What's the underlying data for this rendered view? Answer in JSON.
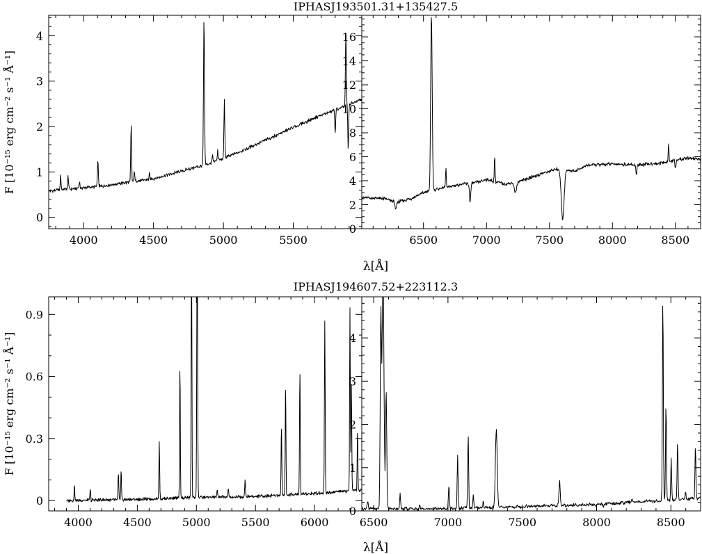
{
  "figure": {
    "top_title": "IPHASJ193501.31+135427.5",
    "bottom_title": "IPHASJ194607.52+223112.3",
    "xlabel": "λ[Å]",
    "ylabel": "F [10⁻¹⁵ erg cm⁻² s⁻¹ Å⁻¹]"
  },
  "chart_data": [
    {
      "type": "line",
      "title": "IPHASJ193501.31+135427.5",
      "xlabel": "λ[Å]",
      "ylabel": "F [10⁻¹⁵ erg cm⁻² s⁻¹ Å⁻¹]",
      "xlim": [
        3750,
        5990
      ],
      "ylim": [
        -0.25,
        4.45
      ],
      "xticks": [
        4000,
        4500,
        5000,
        5500
      ],
      "yticks": [
        0,
        1,
        2,
        3,
        4
      ],
      "continuum": [
        [
          3750,
          0.58
        ],
        [
          4100,
          0.68
        ],
        [
          4300,
          0.76
        ],
        [
          4500,
          0.85
        ],
        [
          4700,
          1.02
        ],
        [
          4900,
          1.18
        ],
        [
          5100,
          1.42
        ],
        [
          5300,
          1.7
        ],
        [
          5500,
          1.98
        ],
        [
          5700,
          2.25
        ],
        [
          5850,
          2.42
        ],
        [
          5990,
          2.6
        ]
      ],
      "lines": [
        {
          "x": 3835,
          "peak": 0.93,
          "width": 3,
          "label": ""
        },
        {
          "x": 3889,
          "peak": 0.92,
          "width": 3,
          "label": ""
        },
        {
          "x": 3970,
          "peak": 0.78,
          "width": 3,
          "label": ""
        },
        {
          "x": 4102,
          "peak": 1.28,
          "width": 3,
          "label": ""
        },
        {
          "x": 4340,
          "peak": 2.05,
          "width": 3,
          "label": ""
        },
        {
          "x": 4363,
          "peak": 1.05,
          "width": 2.5,
          "label": ""
        },
        {
          "x": 4471,
          "peak": 0.98,
          "width": 2.5,
          "label": ""
        },
        {
          "x": 4861,
          "peak": 4.4,
          "width": 3.5,
          "label": ""
        },
        {
          "x": 4922,
          "peak": 1.4,
          "width": 2.5,
          "label": ""
        },
        {
          "x": 4959,
          "peak": 1.5,
          "width": 2.5,
          "label": ""
        },
        {
          "x": 5007,
          "peak": 2.6,
          "width": 3,
          "label": ""
        },
        {
          "x": 5876,
          "peak": 4.1,
          "width": 3,
          "label": ""
        }
      ],
      "absorptions": [
        {
          "x": 5800,
          "depth": 0.5,
          "width": 3
        },
        {
          "x": 5893,
          "depth": 1.0,
          "width": 3
        }
      ]
    },
    {
      "type": "line",
      "title": "IPHASJ193501.31+135427.5",
      "xlabel": "λ[Å]",
      "ylim": [
        0,
        17.8
      ],
      "xlim": [
        6010,
        8700
      ],
      "xticks": [
        6500,
        7000,
        7500,
        8000,
        8500
      ],
      "yticks": [
        0,
        2,
        4,
        6,
        8,
        10,
        12,
        14,
        16
      ],
      "continuum": [
        [
          6010,
          2.6
        ],
        [
          6200,
          2.5
        ],
        [
          6280,
          2.2
        ],
        [
          6400,
          2.5
        ],
        [
          6500,
          3.0
        ],
        [
          6600,
          3.3
        ],
        [
          6800,
          3.7
        ],
        [
          6900,
          3.8
        ],
        [
          7000,
          4.1
        ],
        [
          7150,
          3.7
        ],
        [
          7300,
          4.1
        ],
        [
          7500,
          4.8
        ],
        [
          7570,
          5.0
        ],
        [
          7700,
          4.8
        ],
        [
          7800,
          5.3
        ],
        [
          8000,
          5.4
        ],
        [
          8200,
          5.3
        ],
        [
          8400,
          5.5
        ],
        [
          8600,
          5.9
        ],
        [
          8700,
          5.8
        ]
      ],
      "lines": [
        {
          "x": 6563,
          "peak": 17.8,
          "width": 6,
          "label": ""
        },
        {
          "x": 6678,
          "peak": 5.0,
          "width": 3,
          "label": ""
        },
        {
          "x": 7065,
          "peak": 6.0,
          "width": 3,
          "label": ""
        },
        {
          "x": 8446,
          "peak": 7.0,
          "width": 3,
          "label": ""
        }
      ],
      "absorptions": [
        {
          "x": 6280,
          "depth": 0.6,
          "width": 6
        },
        {
          "x": 6870,
          "depth": 1.5,
          "width": 5
        },
        {
          "x": 7230,
          "depth": 0.9,
          "width": 10
        },
        {
          "x": 7605,
          "depth": 4.2,
          "width": 11
        },
        {
          "x": 8190,
          "depth": 0.8,
          "width": 4
        },
        {
          "x": 8500,
          "depth": 0.7,
          "width": 4
        }
      ]
    },
    {
      "type": "line",
      "title": "IPHASJ194607.52+223112.3",
      "xlabel": "λ[Å]",
      "ylabel": "F [10⁻¹⁵ erg cm⁻² s⁻¹ Å⁻¹]",
      "xlim": [
        3750,
        6400
      ],
      "ylim": [
        -0.05,
        0.985
      ],
      "xticks": [
        4000,
        4500,
        5000,
        5500,
        6000
      ],
      "yticks": [
        0,
        0.3,
        0.6,
        0.9
      ],
      "ytick_labels": [
        "0",
        "0.3",
        "0.6",
        "0.9"
      ],
      "x_start": 3900,
      "continuum": [
        [
          3900,
          0.0
        ],
        [
          4500,
          0.005
        ],
        [
          5000,
          0.015
        ],
        [
          5500,
          0.02
        ],
        [
          6000,
          0.035
        ],
        [
          6400,
          0.05
        ]
      ],
      "lines": [
        {
          "x": 3968,
          "peak": 0.075,
          "width": 3,
          "label": ""
        },
        {
          "x": 4102,
          "peak": 0.055,
          "width": 3,
          "label": ""
        },
        {
          "x": 4340,
          "peak": 0.13,
          "width": 3,
          "label": ""
        },
        {
          "x": 4363,
          "peak": 0.15,
          "width": 3,
          "label": ""
        },
        {
          "x": 4686,
          "peak": 0.28,
          "width": 3,
          "label": ""
        },
        {
          "x": 4861,
          "peak": 0.66,
          "width": 3,
          "label": ""
        },
        {
          "x": 4959,
          "peak": 1.3,
          "width": 3,
          "label": ""
        },
        {
          "x": 5007,
          "peak": 1.3,
          "width": 3.5,
          "label": ""
        },
        {
          "x": 5176,
          "peak": 0.05,
          "width": 3,
          "label": ""
        },
        {
          "x": 5270,
          "peak": 0.06,
          "width": 3,
          "label": ""
        },
        {
          "x": 5412,
          "peak": 0.1,
          "width": 3,
          "label": ""
        },
        {
          "x": 5720,
          "peak": 0.37,
          "width": 3,
          "label": ""
        },
        {
          "x": 5755,
          "peak": 0.57,
          "width": 3,
          "label": ""
        },
        {
          "x": 5876,
          "peak": 0.64,
          "width": 3,
          "label": ""
        },
        {
          "x": 6087,
          "peak": 0.87,
          "width": 3,
          "label": ""
        },
        {
          "x": 6300,
          "peak": 0.93,
          "width": 3,
          "label": ""
        },
        {
          "x": 6312,
          "peak": 0.55,
          "width": 3,
          "label": ""
        },
        {
          "x": 6364,
          "peak": 0.34,
          "width": 3,
          "label": ""
        }
      ],
      "absorptions": []
    },
    {
      "type": "line",
      "title": "IPHASJ194607.52+223112.3",
      "xlabel": "λ[Å]",
      "xlim": [
        6420,
        8700
      ],
      "ylim": [
        0,
        4.95
      ],
      "xticks": [
        6500,
        7000,
        7500,
        8000,
        8500
      ],
      "yticks": [
        0,
        1,
        2,
        3,
        4
      ],
      "continuum": [
        [
          6420,
          0.05
        ],
        [
          7000,
          0.05
        ],
        [
          7500,
          0.1
        ],
        [
          8000,
          0.15
        ],
        [
          8500,
          0.25
        ],
        [
          8700,
          0.3
        ]
      ],
      "lines": [
        {
          "x": 6460,
          "peak": 0.25,
          "width": 3,
          "label": ""
        },
        {
          "x": 6548,
          "peak": 4.5,
          "width": 4,
          "label": ""
        },
        {
          "x": 6563,
          "peak": 5.8,
          "width": 6,
          "label": ""
        },
        {
          "x": 6584,
          "peak": 2.8,
          "width": 4,
          "label": ""
        },
        {
          "x": 6678,
          "peak": 0.4,
          "width": 3,
          "label": ""
        },
        {
          "x": 6716,
          "peak": 0.1,
          "width": 3,
          "label": ""
        },
        {
          "x": 6810,
          "peak": 0.15,
          "width": 3,
          "label": ""
        },
        {
          "x": 7006,
          "peak": 0.6,
          "width": 3,
          "label": ""
        },
        {
          "x": 7065,
          "peak": 1.3,
          "width": 3,
          "label": ""
        },
        {
          "x": 7136,
          "peak": 1.8,
          "width": 3,
          "label": ""
        },
        {
          "x": 7170,
          "peak": 0.35,
          "width": 3,
          "label": ""
        },
        {
          "x": 7237,
          "peak": 0.2,
          "width": 3,
          "label": ""
        },
        {
          "x": 7325,
          "peak": 1.9,
          "width": 6,
          "label": ""
        },
        {
          "x": 7530,
          "peak": 0.12,
          "width": 3,
          "label": ""
        },
        {
          "x": 7751,
          "peak": 0.7,
          "width": 4,
          "label": ""
        },
        {
          "x": 8046,
          "peak": 0.1,
          "width": 3,
          "label": ""
        },
        {
          "x": 8237,
          "peak": 0.3,
          "width": 3,
          "label": ""
        },
        {
          "x": 8446,
          "peak": 4.95,
          "width": 3,
          "label": ""
        },
        {
          "x": 8467,
          "peak": 2.5,
          "width": 3,
          "label": ""
        },
        {
          "x": 8502,
          "peak": 1.2,
          "width": 3,
          "label": ""
        },
        {
          "x": 8545,
          "peak": 1.6,
          "width": 3,
          "label": ""
        },
        {
          "x": 8598,
          "peak": 0.45,
          "width": 3,
          "label": ""
        },
        {
          "x": 8665,
          "peak": 1.5,
          "width": 3,
          "label": ""
        }
      ],
      "absorptions": []
    }
  ]
}
